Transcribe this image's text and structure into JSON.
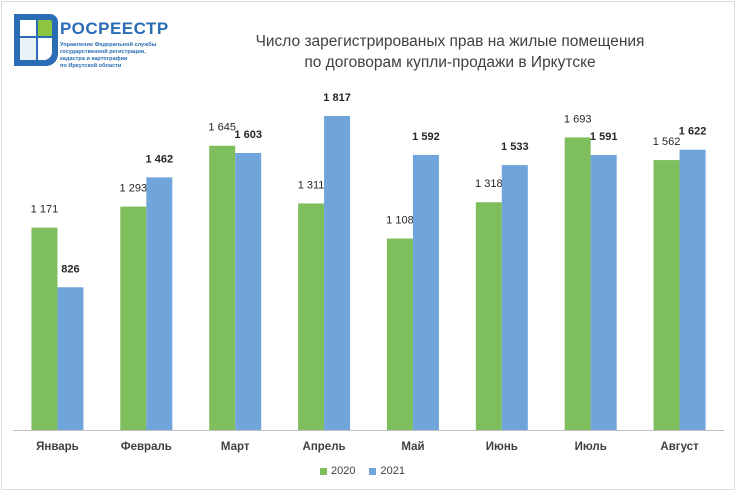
{
  "logo": {
    "name": "РОСРЕЕСТР",
    "subtitle_lines": [
      "Управление Федеральной службы",
      "государственной регистрации,",
      "кадастра и картографии",
      "по Иркутской области"
    ]
  },
  "colors": {
    "series_2020": "#7fbe5c",
    "series_2021": "#6fa5da",
    "logo_blue": "#2a6db5",
    "logo_green": "#8cc63f"
  },
  "chart_data": {
    "type": "bar",
    "title_lines": [
      "Число зарегистрированых  прав на жилые помещения",
      "по договорам купли-продажи в Иркутске"
    ],
    "categories": [
      "Январь",
      "Февраль",
      "Март",
      "Апрель",
      "Май",
      "Июнь",
      "Июль",
      "Август"
    ],
    "series": [
      {
        "name": "2020",
        "values": [
          1171,
          1293,
          1645,
          1311,
          1108,
          1318,
          1693,
          1562
        ],
        "labels": [
          "1 171",
          "1 293",
          "1 645",
          "1 311",
          "1 108",
          "1 318",
          "1 693",
          "1 562"
        ]
      },
      {
        "name": "2021",
        "values": [
          826,
          1462,
          1603,
          1817,
          1592,
          1533,
          1591,
          1622
        ],
        "labels": [
          "826",
          "1 462",
          "1 603",
          "1 817",
          "1 592",
          "1 533",
          "1 591",
          "1 622"
        ]
      }
    ],
    "ylim": [
      0,
      1817
    ],
    "legend_position": "bottom",
    "grid": false
  }
}
